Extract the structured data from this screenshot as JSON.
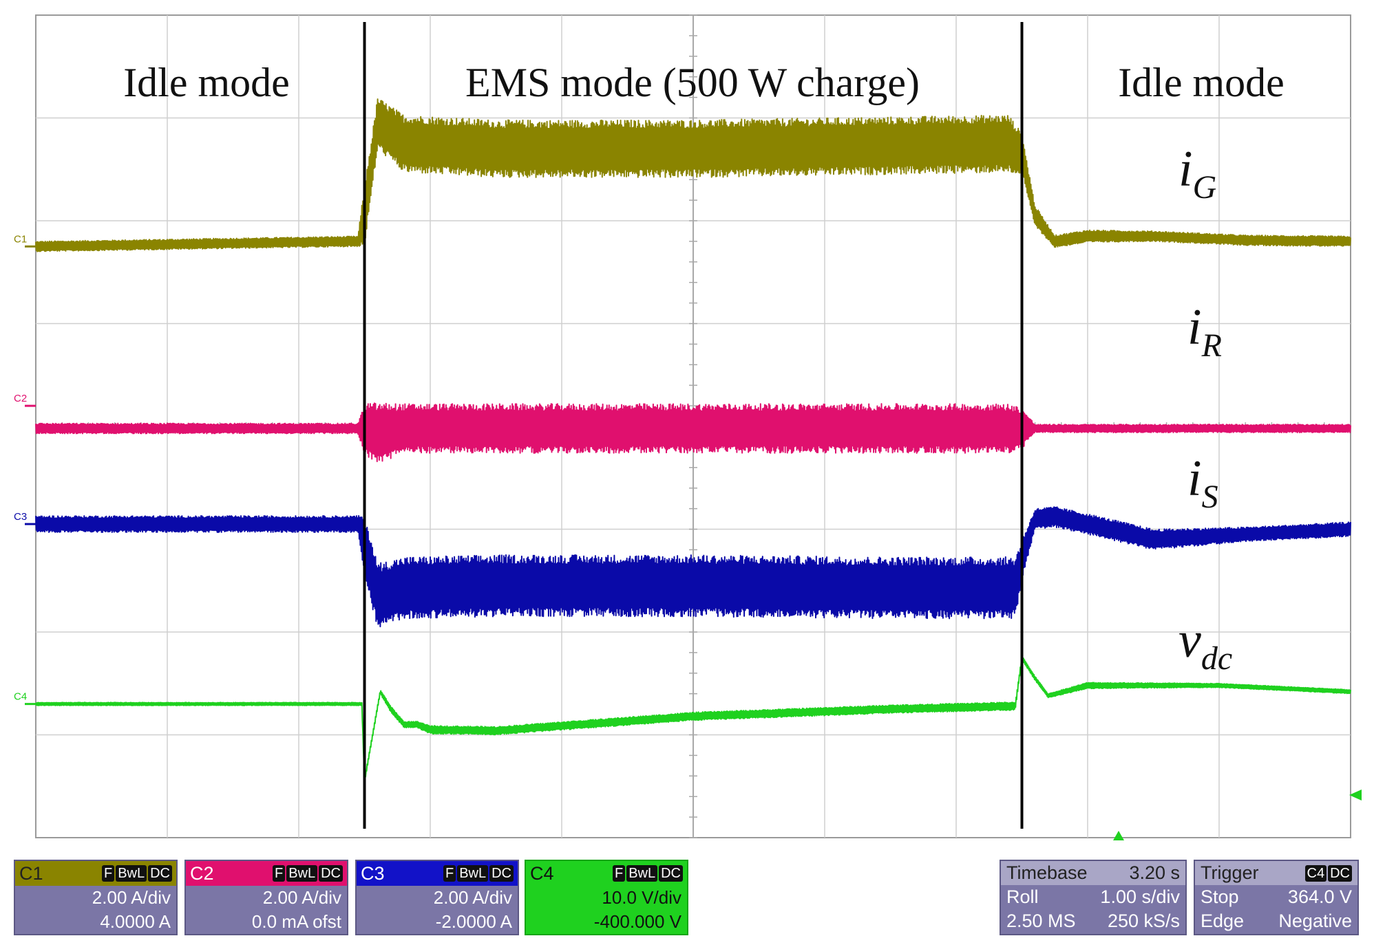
{
  "chart_data": {
    "type": "line",
    "title": "",
    "x_unit": "s",
    "x_range": [
      0,
      10
    ],
    "grid": true,
    "mode_boundaries": [
      2.5,
      7.5
    ],
    "modes": [
      {
        "label": "Idle mode",
        "x_start": 0,
        "x_end": 2.5
      },
      {
        "label": "EMS mode (500 W charge)",
        "x_start": 2.5,
        "x_end": 7.5
      },
      {
        "label": "Idle mode",
        "x_start": 7.5,
        "x_end": 10
      }
    ],
    "series": [
      {
        "name": "i",
        "subscript": "G",
        "channel": "C1",
        "color": "#8a8400",
        "offset_div": 1.75,
        "x": [
          0,
          2.45,
          2.5,
          2.6,
          2.8,
          3.5,
          5,
          6.5,
          7.4,
          7.5,
          7.6,
          7.75,
          8.0,
          8.5,
          9.2,
          10
        ],
        "center": [
          0,
          0.05,
          0.3,
          1.2,
          1.0,
          0.95,
          0.95,
          0.98,
          1.0,
          0.9,
          0.3,
          0.05,
          0.1,
          0.1,
          0.06,
          0.05
        ],
        "ripple": [
          0.05,
          0.05,
          0.3,
          0.25,
          0.28,
          0.28,
          0.28,
          0.28,
          0.28,
          0.2,
          0.1,
          0.06,
          0.06,
          0.05,
          0.05,
          0.05
        ]
      },
      {
        "name": "i",
        "subscript": "R",
        "channel": "C2",
        "color": "#e0106e",
        "offset_div": 0.2,
        "x": [
          0,
          2.45,
          2.5,
          2.6,
          2.8,
          4,
          6,
          7.4,
          7.5,
          7.6,
          8.5,
          10
        ],
        "center": [
          0,
          0,
          0,
          -0.05,
          0,
          0,
          0,
          0,
          0,
          0,
          0,
          0
        ],
        "ripple": [
          0.05,
          0.05,
          0.25,
          0.3,
          0.24,
          0.24,
          0.24,
          0.24,
          0.2,
          0.04,
          0.04,
          0.04
        ],
        "center_shift": -0.22
      },
      {
        "name": "i",
        "subscript": "S",
        "channel": "C3",
        "color": "#0a0aa8",
        "offset_div": -0.95,
        "x": [
          0,
          2.45,
          2.5,
          2.6,
          2.8,
          3.5,
          5,
          6.5,
          7.45,
          7.5,
          7.6,
          7.75,
          8.0,
          8.5,
          9.2,
          10
        ],
        "center": [
          0,
          0,
          -0.2,
          -0.7,
          -0.62,
          -0.6,
          -0.6,
          -0.62,
          -0.62,
          -0.35,
          0.05,
          0.07,
          0.0,
          -0.15,
          -0.1,
          -0.05
        ],
        "ripple": [
          0.08,
          0.08,
          0.3,
          0.32,
          0.3,
          0.3,
          0.3,
          0.3,
          0.3,
          0.2,
          0.1,
          0.1,
          0.1,
          0.1,
          0.07,
          0.07
        ]
      },
      {
        "name": "v",
        "subscript": "dc",
        "channel": "C4",
        "color": "#1fd11f",
        "offset_div": -2.7,
        "x": [
          0,
          2.48,
          2.5,
          2.62,
          2.7,
          2.8,
          2.9,
          3.0,
          3.5,
          5,
          6.5,
          7.45,
          7.5,
          7.6,
          7.7,
          8.0,
          9.0,
          10
        ],
        "center": [
          0,
          0,
          -0.75,
          0.12,
          -0.05,
          -0.2,
          -0.2,
          -0.25,
          -0.26,
          -0.12,
          -0.05,
          -0.02,
          0.45,
          0.25,
          0.08,
          0.18,
          0.18,
          0.12
        ],
        "ripple": [
          0.015,
          0.015,
          0.02,
          0.02,
          0.03,
          0.03,
          0.03,
          0.04,
          0.04,
          0.04,
          0.04,
          0.04,
          0.02,
          0.02,
          0.02,
          0.03,
          0.02,
          0.02
        ]
      }
    ]
  },
  "channels": [
    {
      "id": "C1",
      "scale": "2.00 A/div",
      "offset": "4.0000 A",
      "tags": [
        "F",
        "BwL",
        "DC"
      ],
      "color": "#8a8400"
    },
    {
      "id": "C2",
      "scale": "2.00 A/div",
      "offset": "0.0 mA ofst",
      "tags": [
        "F",
        "BwL",
        "DC"
      ],
      "color": "#e0106e"
    },
    {
      "id": "C3",
      "scale": "2.00 A/div",
      "offset": "-2.0000 A",
      "tags": [
        "F",
        "BwL",
        "DC"
      ],
      "color": "#0a0aa8"
    },
    {
      "id": "C4",
      "scale": "10.0 V/div",
      "offset": "-400.000 V",
      "tags": [
        "F",
        "BwL",
        "DC"
      ],
      "color": "#1fd11f"
    }
  ],
  "timebase": {
    "label": "Timebase",
    "value": "3.20 s",
    "mode": "Roll",
    "div": "1.00 s/div",
    "samples": "2.50 MS",
    "rate": "250 kS/s"
  },
  "trigger": {
    "label": "Trigger",
    "channel": "C4",
    "coupling": "DC",
    "mode": "Stop",
    "level": "364.0 V",
    "type": "Edge",
    "slope": "Negative"
  }
}
